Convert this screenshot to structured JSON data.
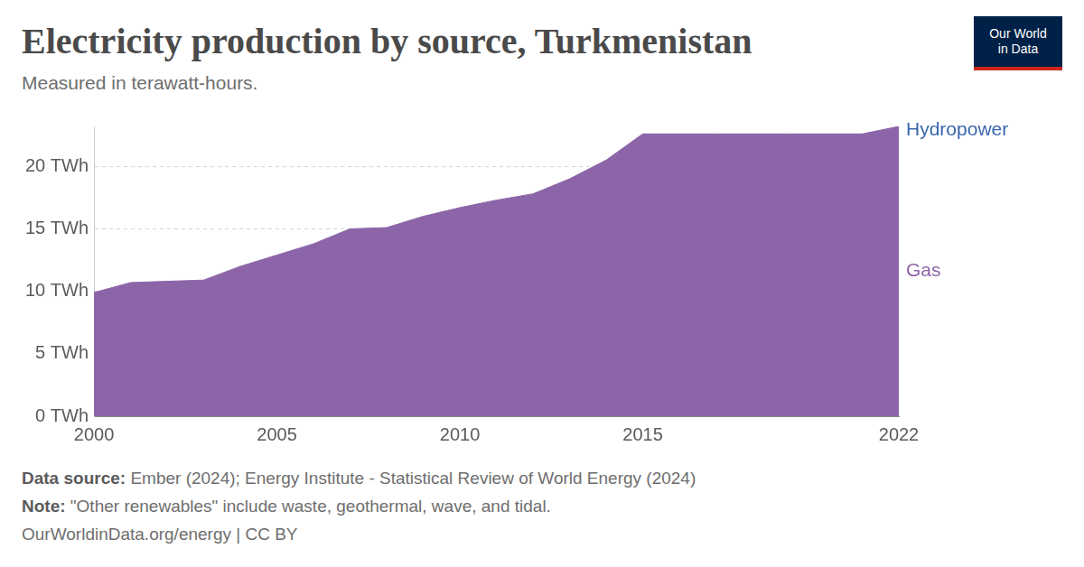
{
  "chart_data": {
    "type": "area",
    "title": "Electricity production by source, Turkmenistan",
    "subtitle": "Measured in terawatt-hours.",
    "x": [
      2000,
      2001,
      2002,
      2003,
      2004,
      2005,
      2006,
      2007,
      2008,
      2009,
      2010,
      2011,
      2012,
      2013,
      2014,
      2015,
      2016,
      2017,
      2018,
      2019,
      2020,
      2021,
      2022
    ],
    "series": [
      {
        "name": "Gas",
        "color": "#8c65a8",
        "values": [
          9.9,
          10.7,
          10.8,
          10.9,
          12.0,
          12.9,
          13.8,
          15.0,
          15.1,
          16.0,
          16.7,
          17.3,
          17.8,
          19.0,
          20.5,
          22.6,
          22.6,
          22.6,
          22.6,
          22.6,
          22.6,
          22.6,
          23.2
        ]
      },
      {
        "name": "Hydropower",
        "color": "#3a66ad",
        "values": [
          0,
          0,
          0,
          0,
          0,
          0,
          0,
          0,
          0,
          0,
          0,
          0,
          0,
          0,
          0,
          0,
          0,
          0,
          0,
          0,
          0,
          0,
          0
        ]
      }
    ],
    "stacked": true,
    "xlim": [
      2000,
      2022
    ],
    "xticks": [
      2000,
      2005,
      2010,
      2015,
      2022
    ],
    "ylim": [
      0,
      23.2
    ],
    "yticks": [
      {
        "value": 0,
        "label": "0 TWh"
      },
      {
        "value": 5,
        "label": "5 TWh"
      },
      {
        "value": 10,
        "label": "10 TWh"
      },
      {
        "value": 15,
        "label": "15 TWh"
      },
      {
        "value": 20,
        "label": "20 TWh"
      }
    ],
    "grid": true,
    "source_label": "Data source:",
    "source": "Ember (2024); Energy Institute - Statistical Review of World Energy (2024)",
    "note_label": "Note:",
    "note": "\"Other renewables\" include waste, geothermal, wave, and tidal.",
    "url": "OurWorldinData.org/energy | CC BY",
    "logo": [
      "Our World",
      "in Data"
    ]
  }
}
